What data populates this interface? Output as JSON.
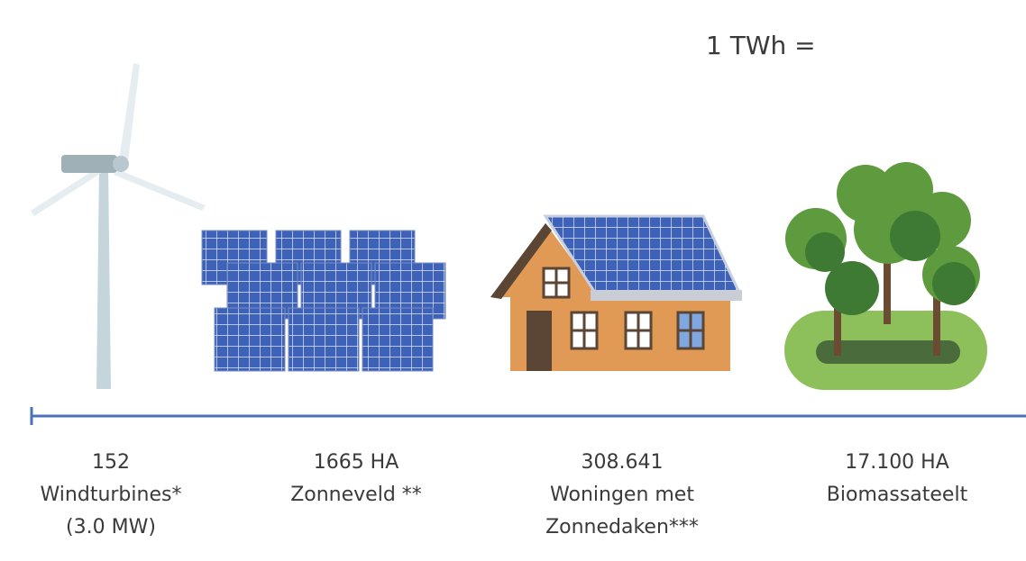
{
  "header": {
    "title": "1 TWh ="
  },
  "items": [
    {
      "lines": [
        "152",
        "Windturbines*",
        "(3.0 MW)"
      ]
    },
    {
      "lines": [
        "1665 HA",
        "Zonneveld **"
      ]
    },
    {
      "lines": [
        "308.641",
        "Woningen met",
        "Zonnedaken***"
      ]
    },
    {
      "lines": [
        "17.100 HA",
        "Biomassateelt"
      ]
    }
  ]
}
